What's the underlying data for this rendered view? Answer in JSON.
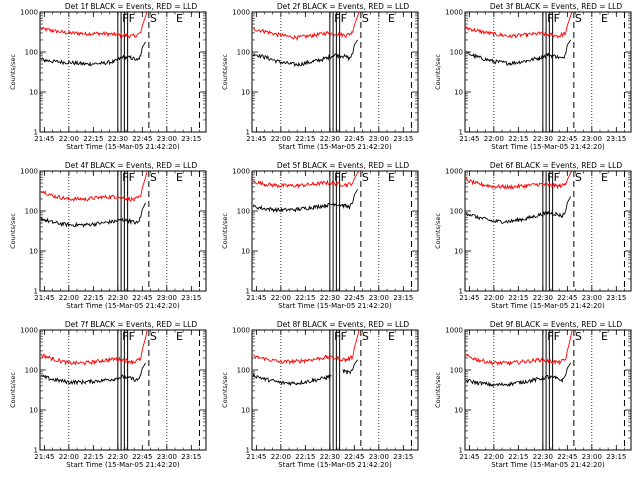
{
  "figure": {
    "xlabel": "Start Time (15-Mar-05 21:42:20)",
    "ylabel": "Counts/sec"
  },
  "chart_data": [
    {
      "type": "line",
      "title": "Det 1f BLACK = Events, RED = LLD",
      "xlabel": "Start Time (15-Mar-05 21:42:20)",
      "ylabel": "Counts/sec",
      "y_scale": "log",
      "ylim": [
        1,
        1000
      ],
      "xlim": [
        "21:42:20",
        "23:24"
      ],
      "x_ticks": [
        "21:45",
        "22:00",
        "22:15",
        "22:30",
        "22:45",
        "23:00",
        "23:15"
      ],
      "y_ticks": [
        "1",
        "10",
        "100",
        "1000"
      ],
      "series": [
        {
          "color": "#ff0000",
          "x": [
            "21:43",
            "21:50",
            "22:00",
            "22:10",
            "22:20",
            "22:28",
            "22:35",
            "22:40",
            "22:44",
            "22:45",
            "22:47",
            "22:48"
          ],
          "values": [
            380,
            340,
            300,
            290,
            290,
            275,
            260,
            250,
            300,
            450,
            800,
            1000
          ]
        },
        {
          "color": "#000000",
          "x": [
            "21:43",
            "21:50",
            "22:00",
            "22:10",
            "22:20",
            "22:28",
            "22:33",
            "22:38",
            "22:42",
            "22:44",
            "22:45",
            "22:47"
          ],
          "values": [
            65,
            58,
            55,
            50,
            52,
            58,
            75,
            72,
            62,
            80,
            130,
            180
          ]
        }
      ],
      "markers": [
        {
          "label": "F",
          "x": "22:32"
        },
        {
          "label": "F",
          "x": "22:36"
        },
        {
          "label": "S",
          "x": "22:49"
        },
        {
          "label": "E",
          "x": "23:05"
        }
      ]
    },
    {
      "type": "line",
      "title": "Det 2f BLACK = Events, RED = LLD",
      "xlabel": "Start Time (15-Mar-05 21:42:20)",
      "ylabel": "Counts/sec",
      "y_scale": "log",
      "ylim": [
        1,
        1000
      ],
      "xlim": [
        "21:42:20",
        "23:24"
      ],
      "x_ticks": [
        "21:45",
        "22:00",
        "22:15",
        "22:30",
        "22:45",
        "23:00",
        "23:15"
      ],
      "y_ticks": [
        "1",
        "10",
        "100",
        "1000"
      ],
      "series": [
        {
          "color": "#ff0000",
          "x": [
            "21:43",
            "21:50",
            "22:00",
            "22:10",
            "22:20",
            "22:28",
            "22:35",
            "22:40",
            "22:44",
            "22:45",
            "22:47",
            "22:48"
          ],
          "values": [
            380,
            330,
            260,
            230,
            260,
            300,
            280,
            260,
            310,
            460,
            800,
            1000
          ]
        },
        {
          "color": "#000000",
          "x": [
            "21:43",
            "21:50",
            "22:00",
            "22:10",
            "22:20",
            "22:28",
            "22:33",
            "22:38",
            "22:42",
            "22:44",
            "22:45",
            "22:47"
          ],
          "values": [
            90,
            75,
            55,
            48,
            58,
            70,
            85,
            80,
            70,
            90,
            150,
            200
          ]
        }
      ],
      "markers": [
        {
          "label": "F",
          "x": "22:32"
        },
        {
          "label": "F",
          "x": "22:36"
        },
        {
          "label": "S",
          "x": "22:49"
        },
        {
          "label": "E",
          "x": "23:05"
        }
      ]
    },
    {
      "type": "line",
      "title": "Det 3f BLACK = Events, RED = LLD",
      "xlabel": "Start Time (15-Mar-05 21:42:20)",
      "ylabel": "Counts/sec",
      "y_scale": "log",
      "ylim": [
        1,
        1000
      ],
      "xlim": [
        "21:42:20",
        "23:24"
      ],
      "x_ticks": [
        "21:45",
        "22:00",
        "22:15",
        "22:30",
        "22:45",
        "23:00",
        "23:15"
      ],
      "y_ticks": [
        "1",
        "10",
        "100",
        "1000"
      ],
      "series": [
        {
          "color": "#ff0000",
          "x": [
            "21:43",
            "21:50",
            "22:00",
            "22:10",
            "22:20",
            "22:28",
            "22:35",
            "22:40",
            "22:44",
            "22:45",
            "22:47",
            "22:48"
          ],
          "values": [
            400,
            340,
            280,
            250,
            270,
            290,
            270,
            250,
            300,
            450,
            800,
            1000
          ]
        },
        {
          "color": "#000000",
          "x": [
            "21:43",
            "21:50",
            "22:00",
            "22:10",
            "22:20",
            "22:28",
            "22:33",
            "22:38",
            "22:42",
            "22:44",
            "22:45",
            "22:47"
          ],
          "values": [
            95,
            75,
            58,
            52,
            60,
            72,
            85,
            78,
            68,
            90,
            150,
            200
          ]
        }
      ],
      "markers": [
        {
          "label": "F",
          "x": "22:32"
        },
        {
          "label": "F",
          "x": "22:36"
        },
        {
          "label": "S",
          "x": "22:49"
        },
        {
          "label": "E",
          "x": "23:05"
        }
      ]
    },
    {
      "type": "line",
      "title": "Det 4f BLACK = Events, RED = LLD",
      "xlabel": "Start Time (15-Mar-05 21:42:20)",
      "ylabel": "Counts/sec",
      "y_scale": "log",
      "ylim": [
        1,
        1000
      ],
      "xlim": [
        "21:42:20",
        "23:24"
      ],
      "x_ticks": [
        "21:45",
        "22:00",
        "22:15",
        "22:30",
        "22:45",
        "23:00",
        "23:15"
      ],
      "y_ticks": [
        "1",
        "10",
        "100",
        "1000"
      ],
      "series": [
        {
          "color": "#ff0000",
          "x": [
            "21:43",
            "21:50",
            "22:00",
            "22:10",
            "22:20",
            "22:28",
            "22:35",
            "22:40",
            "22:44",
            "22:45",
            "22:47",
            "22:48"
          ],
          "values": [
            330,
            240,
            200,
            200,
            220,
            230,
            210,
            190,
            230,
            380,
            700,
            1000
          ]
        },
        {
          "color": "#000000",
          "x": [
            "21:43",
            "21:50",
            "22:00",
            "22:10",
            "22:20",
            "22:28",
            "22:33",
            "22:38",
            "22:42",
            "22:44",
            "22:45",
            "22:47"
          ],
          "values": [
            65,
            52,
            45,
            45,
            50,
            55,
            60,
            55,
            50,
            70,
            110,
            160
          ]
        }
      ],
      "markers": [
        {
          "label": "F",
          "x": "22:32"
        },
        {
          "label": "F",
          "x": "22:36"
        },
        {
          "label": "S",
          "x": "22:49"
        },
        {
          "label": "E",
          "x": "23:05"
        }
      ]
    },
    {
      "type": "line",
      "title": "Det 5f BLACK = Events, RED = LLD",
      "xlabel": "Start Time (15-Mar-05 21:42:20)",
      "ylabel": "Counts/sec",
      "y_scale": "log",
      "ylim": [
        1,
        1000
      ],
      "xlim": [
        "21:42:20",
        "23:24"
      ],
      "x_ticks": [
        "21:45",
        "22:00",
        "22:15",
        "22:30",
        "22:45",
        "23:00",
        "23:15"
      ],
      "y_ticks": [
        "1",
        "10",
        "100",
        "1000"
      ],
      "series": [
        {
          "color": "#ff0000",
          "x": [
            "21:43",
            "21:50",
            "22:00",
            "22:10",
            "22:20",
            "22:28",
            "22:35",
            "22:40",
            "22:44",
            "22:45",
            "22:47",
            "22:48"
          ],
          "values": [
            550,
            470,
            430,
            430,
            470,
            510,
            480,
            450,
            500,
            650,
            900,
            1000
          ]
        },
        {
          "color": "#000000",
          "x": [
            "21:43",
            "21:50",
            "22:00",
            "22:10",
            "22:20",
            "22:28",
            "22:33",
            "22:38",
            "22:42",
            "22:44",
            "22:45",
            "22:47"
          ],
          "values": [
            130,
            115,
            105,
            110,
            125,
            140,
            150,
            140,
            125,
            160,
            250,
            350
          ]
        }
      ],
      "markers": [
        {
          "label": "F",
          "x": "22:32"
        },
        {
          "label": "F",
          "x": "22:36"
        },
        {
          "label": "S",
          "x": "22:49"
        },
        {
          "label": "E",
          "x": "23:05"
        }
      ]
    },
    {
      "type": "line",
      "title": "Det 6f BLACK = Events, RED = LLD",
      "xlabel": "Start Time (15-Mar-05 21:42:20)",
      "ylabel": "Counts/sec",
      "y_scale": "log",
      "ylim": [
        1,
        1000
      ],
      "xlim": [
        "21:42:20",
        "23:24"
      ],
      "x_ticks": [
        "21:45",
        "22:00",
        "22:15",
        "22:30",
        "22:45",
        "23:00",
        "23:15"
      ],
      "y_ticks": [
        "1",
        "10",
        "100",
        "1000"
      ],
      "series": [
        {
          "color": "#ff0000",
          "x": [
            "21:43",
            "21:50",
            "22:00",
            "22:10",
            "22:20",
            "22:28",
            "22:35",
            "22:40",
            "22:44",
            "22:45",
            "22:47",
            "22:48"
          ],
          "values": [
            600,
            480,
            410,
            400,
            430,
            470,
            440,
            420,
            460,
            600,
            900,
            1000
          ]
        },
        {
          "color": "#000000",
          "x": [
            "21:43",
            "21:50",
            "22:00",
            "22:10",
            "22:20",
            "22:28",
            "22:33",
            "22:38",
            "22:42",
            "22:44",
            "22:45",
            "22:47"
          ],
          "values": [
            90,
            70,
            55,
            55,
            65,
            80,
            90,
            85,
            75,
            100,
            160,
            230
          ]
        }
      ],
      "markers": [
        {
          "label": "F",
          "x": "22:32"
        },
        {
          "label": "F",
          "x": "22:36"
        },
        {
          "label": "S",
          "x": "22:49"
        },
        {
          "label": "E",
          "x": "23:05"
        }
      ]
    },
    {
      "type": "line",
      "title": "Det 7f BLACK = Events, RED = LLD",
      "xlabel": "Start Time (15-Mar-05 21:42:20)",
      "ylabel": "Counts/sec",
      "y_scale": "log",
      "ylim": [
        1,
        1000
      ],
      "xlim": [
        "21:42:20",
        "23:24"
      ],
      "x_ticks": [
        "21:45",
        "22:00",
        "22:15",
        "22:30",
        "22:45",
        "23:00",
        "23:15"
      ],
      "y_ticks": [
        "1",
        "10",
        "100",
        "1000"
      ],
      "series": [
        {
          "color": "#ff0000",
          "x": [
            "21:43",
            "21:50",
            "22:00",
            "22:10",
            "22:20",
            "22:28",
            "22:35",
            "22:40",
            "22:44",
            "22:45",
            "22:47",
            "22:48"
          ],
          "values": [
            240,
            190,
            150,
            150,
            170,
            190,
            175,
            160,
            190,
            320,
            650,
            1000
          ]
        },
        {
          "color": "#000000",
          "x": [
            "21:43",
            "21:50",
            "22:00",
            "22:10",
            "22:20",
            "22:28",
            "22:33",
            "22:38",
            "22:42",
            "22:44",
            "22:45",
            "22:47"
          ],
          "values": [
            70,
            58,
            50,
            50,
            55,
            60,
            68,
            62,
            55,
            75,
            110,
            150
          ]
        }
      ],
      "markers": [
        {
          "label": "F",
          "x": "22:32"
        },
        {
          "label": "F",
          "x": "22:36"
        },
        {
          "label": "S",
          "x": "22:49"
        },
        {
          "label": "E",
          "x": "23:05"
        }
      ]
    },
    {
      "type": "line",
      "title": "Det 8f BLACK = Events, RED = LLD",
      "xlabel": "Start Time (15-Mar-05 21:42:20)",
      "ylabel": "Counts/sec",
      "y_scale": "log",
      "ylim": [
        1,
        1000
      ],
      "xlim": [
        "21:42:20",
        "23:24"
      ],
      "x_ticks": [
        "21:45",
        "22:00",
        "22:15",
        "22:30",
        "22:45",
        "23:00",
        "23:15"
      ],
      "y_ticks": [
        "1",
        "10",
        "100",
        "1000"
      ],
      "series": [
        {
          "color": "#ff0000",
          "x": [
            "21:43",
            "21:50",
            "22:00",
            "22:10",
            "22:20",
            "22:28",
            "22:35",
            "22:40",
            "22:44",
            "22:45",
            "22:47",
            "22:48"
          ],
          "values": [
            220,
            190,
            160,
            165,
            185,
            210,
            195,
            180,
            210,
            350,
            700,
            1000
          ]
        },
        {
          "color": "#000000",
          "x": [
            "21:43",
            "21:50",
            "22:00",
            "22:10",
            "22:20",
            "22:28",
            "22:31",
            "22:34",
            "22:38",
            "22:42",
            "22:44",
            "22:45",
            "22:47"
          ],
          "values": [
            75,
            60,
            48,
            47,
            55,
            65,
            75,
            null,
            95,
            85,
            100,
            140,
            180
          ]
        }
      ],
      "markers": [
        {
          "label": "F",
          "x": "22:32"
        },
        {
          "label": "F",
          "x": "22:36"
        },
        {
          "label": "S",
          "x": "22:49"
        },
        {
          "label": "E",
          "x": "23:05"
        }
      ]
    },
    {
      "type": "line",
      "title": "Det 9f BLACK = Events, RED = LLD",
      "xlabel": "Start Time (15-Mar-05 21:42:20)",
      "ylabel": "Counts/sec",
      "y_scale": "log",
      "ylim": [
        1,
        1000
      ],
      "xlim": [
        "21:42:20",
        "23:24"
      ],
      "x_ticks": [
        "21:45",
        "22:00",
        "22:15",
        "22:30",
        "22:45",
        "23:00",
        "23:15"
      ],
      "y_ticks": [
        "1",
        "10",
        "100",
        "1000"
      ],
      "series": [
        {
          "color": "#ff0000",
          "x": [
            "21:43",
            "21:50",
            "22:00",
            "22:10",
            "22:20",
            "22:28",
            "22:35",
            "22:40",
            "22:44",
            "22:45",
            "22:47",
            "22:48"
          ],
          "values": [
            230,
            180,
            150,
            150,
            165,
            180,
            165,
            155,
            180,
            300,
            650,
            1000
          ]
        },
        {
          "color": "#000000",
          "x": [
            "21:43",
            "21:50",
            "22:00",
            "22:10",
            "22:20",
            "22:28",
            "22:33",
            "22:38",
            "22:42",
            "22:44",
            "22:45",
            "22:47"
          ],
          "values": [
            55,
            48,
            42,
            45,
            52,
            60,
            68,
            62,
            55,
            75,
            110,
            150
          ]
        }
      ],
      "markers": [
        {
          "label": "F",
          "x": "22:32"
        },
        {
          "label": "F",
          "x": "22:36"
        },
        {
          "label": "S",
          "x": "22:49"
        },
        {
          "label": "E",
          "x": "23:05"
        }
      ]
    }
  ]
}
